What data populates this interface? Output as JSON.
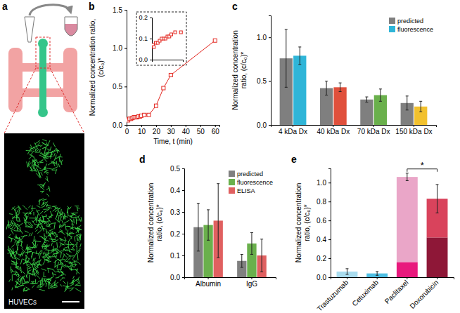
{
  "panel_a": {
    "panel_label": "a",
    "image_label": "HUVECs"
  },
  "chart_data": [
    {
      "panel_label": "b",
      "type": "line",
      "x_label": "Time, t (min)",
      "y_label": "Normalized concentration ratio, (c/c₀)*",
      "x": [
        0.5,
        1,
        2,
        3,
        4,
        5,
        6,
        7,
        8,
        9,
        10,
        12,
        15,
        20,
        25,
        30,
        60
      ],
      "series": [
        {
          "color": "#e3261f",
          "marker": "square",
          "line_style": "solid",
          "values": [
            0.07,
            0.06,
            0.08,
            0.08,
            0.09,
            0.1,
            0.1,
            0.1,
            0.11,
            0.11,
            0.12,
            0.13,
            0.13,
            0.25,
            0.48,
            0.65,
            1.1
          ]
        }
      ],
      "xlim": [
        0,
        63
      ],
      "xticks": [
        0,
        10,
        20,
        30,
        40,
        50,
        60
      ],
      "ylim": [
        0,
        1.5
      ],
      "yticks": [
        {
          "value": 0,
          "label": "0.0"
        },
        {
          "value": 0.5,
          "label": "0.5"
        },
        {
          "value": 1,
          "label": "1.0"
        },
        {
          "value": 1.5,
          "label": "1.5"
        }
      ]
    },
    {
      "type": "scatter",
      "x": [
        0.5,
        1,
        2,
        3,
        4,
        5,
        6,
        7,
        8,
        9,
        10,
        12,
        15
      ],
      "series": [
        {
          "color": "#e3261f",
          "marker": "square",
          "values": [
            0.07,
            0.06,
            0.08,
            0.08,
            0.09,
            0.1,
            0.1,
            0.1,
            0.11,
            0.11,
            0.12,
            0.13,
            0.13
          ]
        }
      ],
      "xlim": [
        0,
        16
      ],
      "ylim": [
        0,
        0.2
      ],
      "yticks": [
        {
          "value": 0,
          "label": "0.0"
        },
        {
          "value": 0.1,
          "label": "0.1"
        },
        {
          "value": 0.2,
          "label": "0.2"
        }
      ],
      "tick_labels": "y"
    },
    {
      "panel_label": "c",
      "type": "bar",
      "y_label": "Normalized concentration ratio, (c/c₀)*",
      "categories": [
        "4 kDa Dx",
        "40 kDa Dx",
        "70 kDa Dx",
        "150 kDa Dx"
      ],
      "series": [
        {
          "name": "predicted",
          "color": "#7f7f7f",
          "values": [
            0.76,
            0.42,
            0.29,
            0.25
          ],
          "errors": [
            0.33,
            0.08,
            0.03,
            0.08
          ]
        },
        {
          "name": "fluorescence",
          "color": "#2fb5d8",
          "colors": [
            "#2fb5d8",
            "#e0503c",
            "#6ab04c",
            "#f2c12e"
          ],
          "values": [
            0.79,
            0.43,
            0.34,
            0.21
          ],
          "errors": [
            0.1,
            0.05,
            0.07,
            0.06
          ]
        }
      ],
      "ylim": [
        0,
        1.25
      ],
      "yticks": [
        {
          "value": 0,
          "label": "0.0"
        },
        {
          "value": 0.5,
          "label": "0.5"
        },
        {
          "value": 1,
          "label": "1.0"
        }
      ],
      "legend": "upper right"
    },
    {
      "panel_label": "d",
      "type": "bar",
      "y_label": "Normalized concentration ratio, (c/c₀)*",
      "categories": [
        "Albumin",
        "IgG"
      ],
      "series": [
        {
          "name": "predicted",
          "color": "#808080",
          "values": [
            0.23,
            0.075
          ],
          "errors": [
            0.11,
            0.03
          ]
        },
        {
          "name": "fluorescence",
          "color": "#6ab04c",
          "values": [
            0.24,
            0.155
          ],
          "errors": [
            0.07,
            0.05
          ]
        },
        {
          "name": "ELISA",
          "color": "#e06060",
          "values": [
            0.26,
            0.1
          ],
          "errors": [
            0.17,
            0.075
          ]
        }
      ],
      "ylim": [
        0,
        0.5
      ],
      "yticks": [
        {
          "value": 0,
          "label": "0.0"
        },
        {
          "value": 0.1,
          "label": "0.1"
        },
        {
          "value": 0.2,
          "label": "0.2"
        },
        {
          "value": 0.3,
          "label": "0.3"
        },
        {
          "value": 0.4,
          "label": "0.4"
        },
        {
          "value": 0.5,
          "label": "0.5"
        }
      ],
      "legend": "upper right"
    },
    {
      "panel_label": "e",
      "type": "bar",
      "stacked": true,
      "y_label": "Normalized concentration ratio, (c/c₀)*",
      "categories": [
        "Trastuzumab",
        "Cetuximab",
        "Paclitaxel",
        "Doxorubicin"
      ],
      "series": [
        {
          "colors": [
            "#a9dcee",
            "#4fbfe3",
            "#e8197d",
            "#8e1737"
          ],
          "values": [
            0.06,
            0.04,
            0.16,
            0.42
          ],
          "errors": [
            0.03,
            0.02,
            null,
            null
          ]
        },
        {
          "colors": [
            null,
            null,
            "#eaa6c8",
            "#d9435c"
          ],
          "values": [
            null,
            null,
            0.9,
            0.41
          ],
          "errors": [
            null,
            null,
            0.04,
            0.15
          ]
        }
      ],
      "ylim": [
        0,
        1.15
      ],
      "yticks": [
        {
          "value": 0,
          "label": "0.0"
        },
        {
          "value": 0.2,
          "label": "0.2"
        },
        {
          "value": 0.4,
          "label": "0.4"
        },
        {
          "value": 0.6,
          "label": "0.6"
        },
        {
          "value": 0.8,
          "label": "0.8"
        },
        {
          "value": 1,
          "label": "1.0"
        }
      ],
      "annotations": [
        {
          "text": "*",
          "categories": [
            "Paclitaxel",
            "Doxorubicin"
          ]
        }
      ]
    }
  ]
}
